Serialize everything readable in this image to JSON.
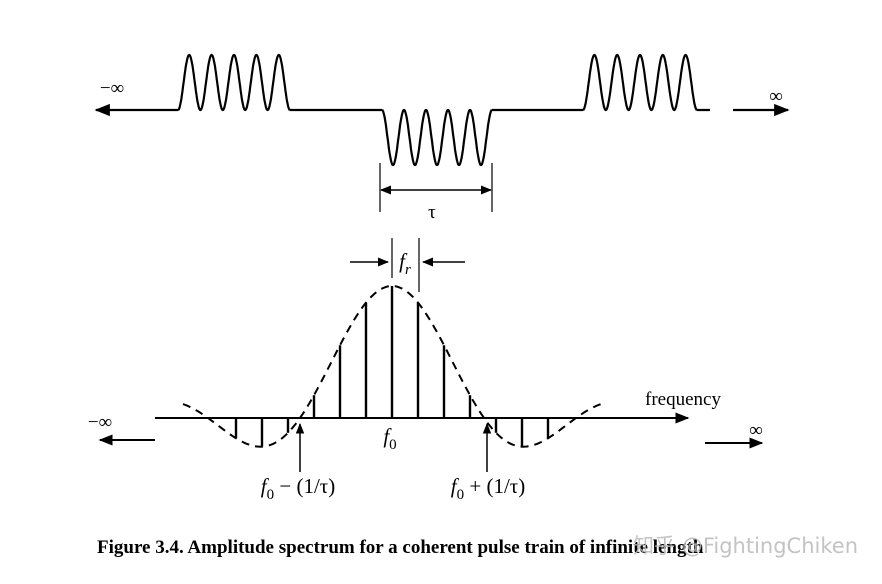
{
  "pulse_train": {
    "left_label": "−∞",
    "right_label": "∞",
    "width_label": "τ"
  },
  "spectrum": {
    "spacing_label": {
      "symbol": "f",
      "subscript": "r"
    },
    "axis_label": "frequency",
    "left_label": "−∞",
    "right_label": "∞",
    "center_label": {
      "symbol": "f",
      "subscript": "0"
    },
    "lower_null_label": {
      "symbol": "f",
      "subscript": "0",
      "suffix": " − (1/τ)"
    },
    "upper_null_label": {
      "symbol": "f",
      "subscript": "0",
      "suffix": " + (1/τ)"
    }
  },
  "caption": "Figure 3.4. Amplitude spectrum for a coherent pulse train of infinite length",
  "watermark": "知乎 @FightingChiken"
}
